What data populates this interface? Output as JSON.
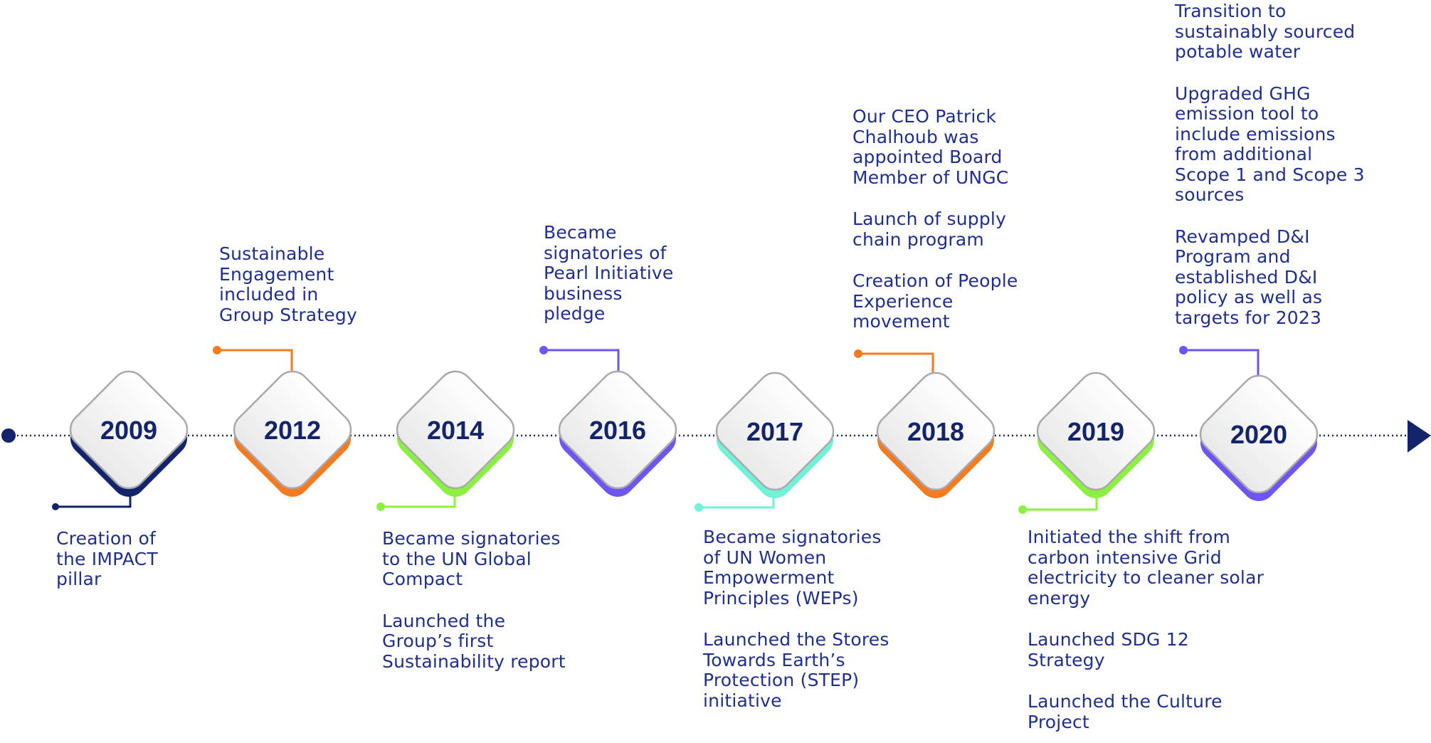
{
  "colors": {
    "navy": "#14246b",
    "text": "#1f2f8e",
    "orange": "#f47b20",
    "green": "#8bf040",
    "purple": "#6f55f0",
    "mint": "#6ff2d6"
  },
  "timeline": {
    "arrow_icon": "arrow-right-icon",
    "start_icon": "dot-icon",
    "milestones": [
      {
        "year": "2009",
        "color": "#14246b",
        "side": "below"
      },
      {
        "year": "2012",
        "color": "#f47b20",
        "side": "above"
      },
      {
        "year": "2014",
        "color": "#8bf040",
        "side": "below"
      },
      {
        "year": "2016",
        "color": "#6f55f0",
        "side": "above"
      },
      {
        "year": "2017",
        "color": "#6ff2d6",
        "side": "below"
      },
      {
        "year": "2018",
        "color": "#f47b20",
        "side": "above"
      },
      {
        "year": "2019",
        "color": "#8bf040",
        "side": "below"
      },
      {
        "year": "2020",
        "color": "#6f55f0",
        "side": "above"
      }
    ]
  },
  "events": {
    "e2009": [
      "Creation of\nthe IMPACT\npillar"
    ],
    "e2012": [
      "Sustainable\nEngagement\nincluded in\nGroup Strategy"
    ],
    "e2014": [
      "Became signatories\nto the UN Global\nCompact",
      "Launched the\nGroup’s first\nSustainability report"
    ],
    "e2016": [
      "Became\nsignatories of\nPearl Initiative\nbusiness\npledge"
    ],
    "e2017": [
      "Became signatories\nof UN Women\nEmpowerment\nPrinciples (WEPs)",
      "Launched the Stores\nTowards Earth’s\nProtection (STEP)\ninitiative"
    ],
    "e2018": [
      "Our CEO Patrick\nChalhoub was\nappointed Board\nMember of UNGC",
      "Launch of supply\nchain program",
      "Creation of People\nExperience\nmovement"
    ],
    "e2019": [
      "Initiated the shift from\ncarbon intensive Grid\nelectricity to cleaner solar\nenergy",
      "Launched SDG 12\nStrategy",
      "Launched the Culture\nProject"
    ],
    "e2020": [
      "Transition to\nsustainably sourced\npotable water",
      "Upgraded GHG\nemission tool to\ninclude emissions\nfrom additional\nScope 1 and Scope 3\nsources",
      "Revamped D&I\nProgram and\nestablished D&I\npolicy as well as\ntargets for 2023"
    ]
  }
}
